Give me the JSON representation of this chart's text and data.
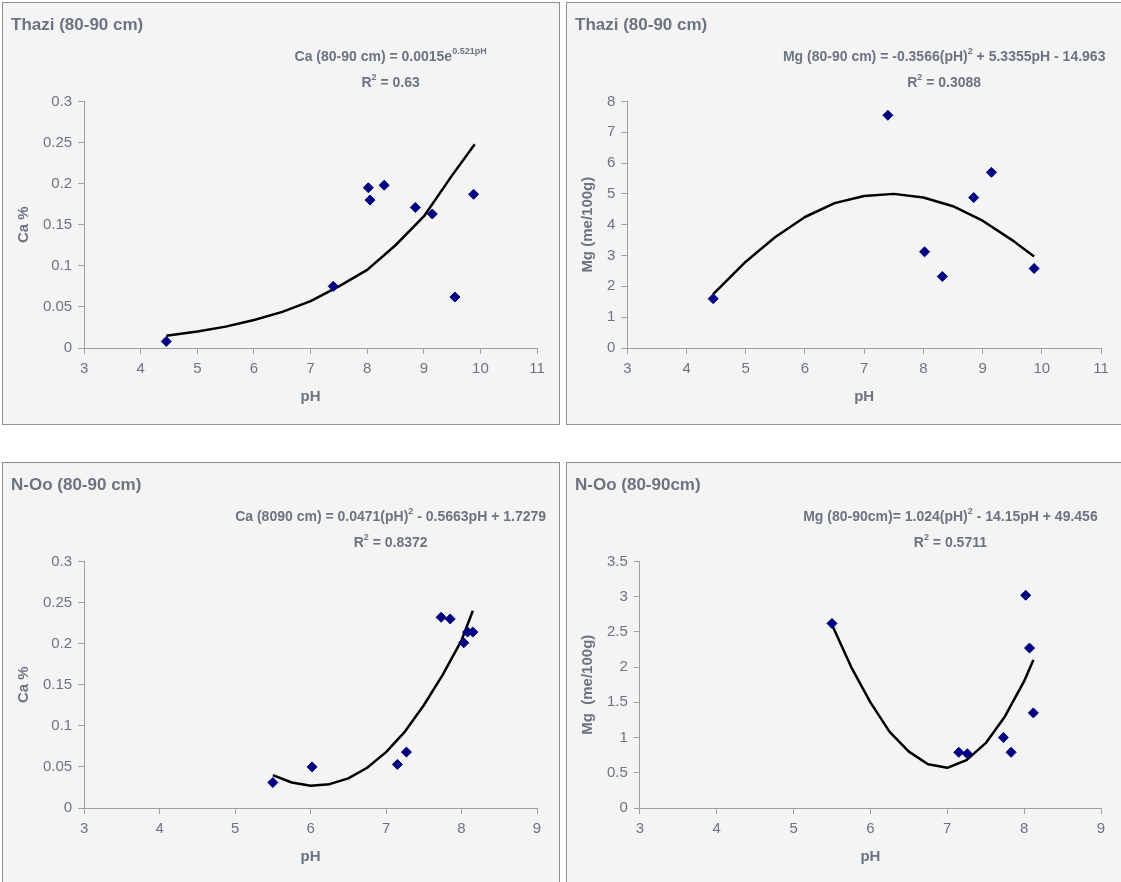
{
  "chart_data": [
    {
      "type": "scatter",
      "title": "Thazi (80-90 cm)",
      "xlabel": "pH",
      "ylabel": "Ca %",
      "annotations": [
        "Ca (80-90 cm) = 0.0015e$^{0.521pH}$",
        "R$^{2}$ = 0.63"
      ],
      "xlim": [
        3,
        11
      ],
      "xticks": [
        3,
        4,
        5,
        6,
        7,
        8,
        9,
        10,
        11
      ],
      "ylim": [
        0,
        0.3
      ],
      "yticks": [
        0,
        0.05,
        0.1,
        0.15,
        0.2,
        0.25,
        0.3
      ],
      "marker": "diamond",
      "series": [
        {
          "type": "scatter",
          "color": "#000080",
          "x": [
            4.45,
            7.4,
            8.02,
            8.05,
            8.3,
            8.85,
            9.15,
            9.55,
            9.88
          ],
          "values": [
            0.008,
            0.075,
            0.195,
            0.18,
            0.198,
            0.171,
            0.163,
            0.062,
            0.187
          ]
        },
        {
          "type": "line",
          "color": "#000000",
          "marker": "none",
          "x": [
            4.45,
            5,
            5.5,
            6,
            6.5,
            7,
            7.5,
            8,
            8.5,
            9,
            9.5,
            9.9
          ],
          "values": [
            0.015,
            0.02,
            0.026,
            0.034,
            0.044,
            0.057,
            0.075,
            0.095,
            0.125,
            0.16,
            0.21,
            0.248
          ]
        }
      ]
    },
    {
      "type": "scatter",
      "title": "Thazi (80-90 cm)",
      "xlabel": "pH",
      "ylabel": "Mg (me/100g)",
      "annotations": [
        "Mg (80-90 cm) = -0.3566(pH)$^{2}$ + 5.3355pH - 14.963",
        "R$^{2}$ = 0.3088"
      ],
      "xlim": [
        3,
        11
      ],
      "xticks": [
        3,
        4,
        5,
        6,
        7,
        8,
        9,
        10,
        11
      ],
      "ylim": [
        0,
        8
      ],
      "yticks": [
        0,
        1,
        2,
        3,
        4,
        5,
        6,
        7,
        8
      ],
      "marker": "diamond",
      "series": [
        {
          "type": "scatter",
          "color": "#000080",
          "x": [
            4.45,
            7.4,
            8.02,
            8.32,
            8.85,
            9.15,
            9.87
          ],
          "values": [
            1.6,
            7.55,
            3.12,
            2.32,
            4.88,
            5.7,
            2.58
          ]
        },
        {
          "type": "line",
          "color": "#000000",
          "marker": "none",
          "x": [
            4.45,
            5,
            5.5,
            6,
            6.5,
            7,
            7.5,
            8,
            8.5,
            9,
            9.5,
            9.87
          ],
          "values": [
            1.75,
            2.8,
            3.6,
            4.25,
            4.7,
            4.93,
            5.0,
            4.88,
            4.6,
            4.13,
            3.5,
            2.97
          ]
        }
      ]
    },
    {
      "type": "scatter",
      "title": "N-Oo (80-90 cm)",
      "xlabel": "pH",
      "ylabel": "Ca %",
      "annotations": [
        "Ca (8090 cm) = 0.0471(pH)$^{2}$ - 0.5663pH + 1.7279",
        "R$^{2}$ = 0.8372"
      ],
      "xlim": [
        3,
        9
      ],
      "xticks": [
        3,
        4,
        5,
        6,
        7,
        8,
        9
      ],
      "ylim": [
        0,
        0.3
      ],
      "yticks": [
        0,
        0.05,
        0.1,
        0.15,
        0.2,
        0.25,
        0.3
      ],
      "marker": "diamond",
      "series": [
        {
          "type": "scatter",
          "color": "#000080",
          "x": [
            5.5,
            6.02,
            7.15,
            7.27,
            7.73,
            7.85,
            8.03,
            8.08,
            8.15
          ],
          "values": [
            0.031,
            0.05,
            0.053,
            0.068,
            0.232,
            0.23,
            0.201,
            0.214,
            0.214
          ]
        },
        {
          "type": "line",
          "color": "#000000",
          "marker": "none",
          "x": [
            5.5,
            5.75,
            6,
            6.25,
            6.5,
            6.75,
            7,
            7.25,
            7.5,
            7.75,
            8,
            8.15
          ],
          "values": [
            0.04,
            0.031,
            0.027,
            0.029,
            0.036,
            0.049,
            0.068,
            0.093,
            0.125,
            0.162,
            0.204,
            0.24
          ]
        }
      ]
    },
    {
      "type": "scatter",
      "title": "N-Oo (80-90cm)",
      "xlabel": "pH",
      "ylabel": "Mg  (me/100g)",
      "annotations": [
        "Mg (80-90cm)= 1.024(pH)$^{2}$ - 14.15pH + 49.456",
        "R$^{2}$ = 0.5711"
      ],
      "xlim": [
        3,
        9
      ],
      "xticks": [
        3,
        4,
        5,
        6,
        7,
        8,
        9
      ],
      "ylim": [
        0,
        3.5
      ],
      "yticks": [
        0,
        0.5,
        1,
        1.5,
        2,
        2.5,
        3,
        3.5
      ],
      "marker": "diamond",
      "series": [
        {
          "type": "scatter",
          "color": "#000080",
          "x": [
            5.5,
            7.15,
            7.26,
            7.73,
            7.83,
            8.02,
            8.07,
            8.12
          ],
          "values": [
            2.62,
            0.79,
            0.77,
            1.0,
            0.79,
            3.02,
            2.27,
            1.35
          ]
        },
        {
          "type": "line",
          "color": "#000000",
          "marker": "none",
          "x": [
            5.5,
            5.75,
            6,
            6.25,
            6.5,
            6.75,
            7,
            7.25,
            7.5,
            7.75,
            8,
            8.12
          ],
          "values": [
            2.6,
            2.0,
            1.5,
            1.08,
            0.8,
            0.62,
            0.57,
            0.68,
            0.92,
            1.3,
            1.8,
            2.1
          ]
        }
      ]
    }
  ]
}
